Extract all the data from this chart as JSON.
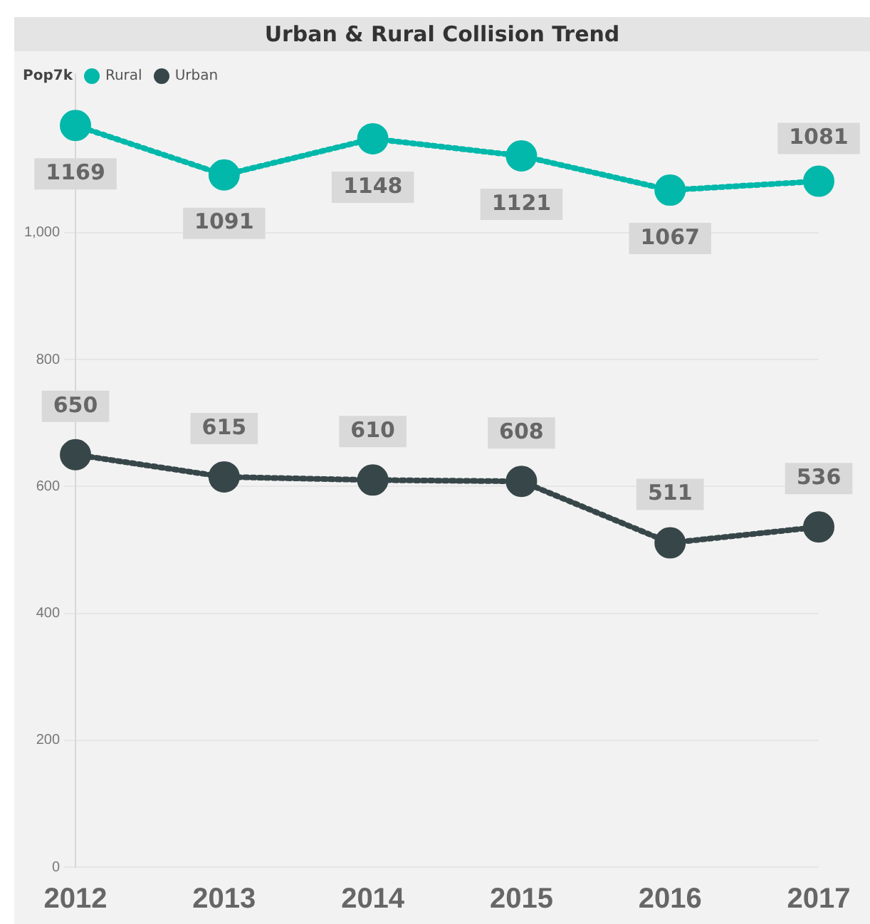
{
  "chart_data": {
    "type": "line",
    "title": "Urban & Rural Collision Trend",
    "legend_title": "Pop7k",
    "legend": "top left",
    "categories": [
      "2012",
      "2013",
      "2014",
      "2015",
      "2016",
      "2017"
    ],
    "series": [
      {
        "name": "Rural",
        "color": "#01b8aa",
        "values": [
          1169,
          1091,
          1148,
          1121,
          1067,
          1081
        ]
      },
      {
        "name": "Urban",
        "color": "#374649",
        "values": [
          650,
          615,
          610,
          608,
          511,
          536
        ]
      }
    ],
    "ylim": [
      0,
      1250
    ],
    "yticks": [
      0,
      200,
      400,
      600,
      800,
      {
        "value": 1000,
        "label": "1,000"
      }
    ],
    "grid": "y",
    "marker": "circle",
    "line_style": "dotted",
    "data_labels": true
  }
}
